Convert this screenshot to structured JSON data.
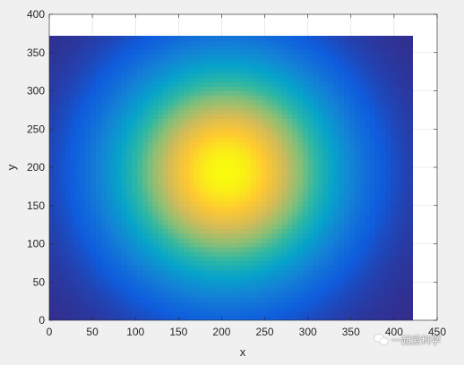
{
  "chart_data": {
    "type": "heatmap",
    "title": "",
    "xlabel": "x",
    "ylabel": "y",
    "xlim": [
      0,
      450
    ],
    "ylim": [
      0,
      400
    ],
    "xticks": [
      0,
      50,
      100,
      150,
      200,
      250,
      300,
      350,
      400,
      450
    ],
    "yticks": [
      0,
      50,
      100,
      150,
      200,
      250,
      300,
      350,
      400
    ],
    "data_extent": {
      "x": [
        0,
        422
      ],
      "y": [
        0,
        372
      ]
    },
    "peak": {
      "x": 205,
      "y": 195
    },
    "spread": {
      "sx": 135,
      "sy": 150
    },
    "colormap": [
      "#352a87",
      "#0f5cdd",
      "#1481d6",
      "#06a4ca",
      "#2eb7a4",
      "#87bf77",
      "#d1bb59",
      "#fec832",
      "#f9fb0e"
    ],
    "grid": true,
    "legend": "none"
  },
  "watermark": {
    "text": "一起爱科学",
    "icon": "wechat-icon"
  }
}
